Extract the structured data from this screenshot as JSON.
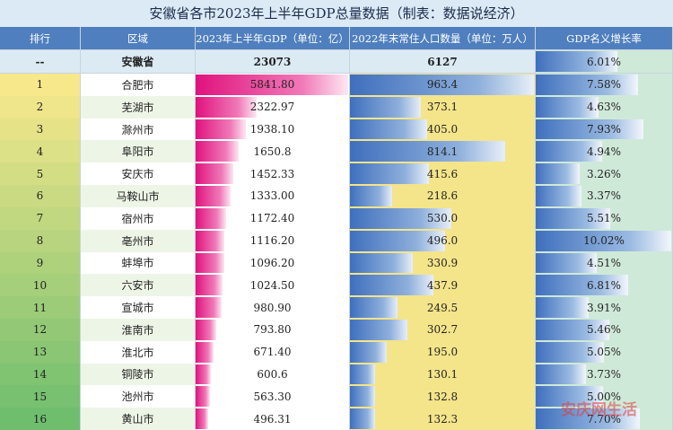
{
  "title": "安徽省各市2023年上半年GDP总量数据（制表：数据说经济）",
  "table": {
    "headers": [
      "排行",
      "区域",
      "2023年上半年GDP（单位：亿）",
      "2022年末常住人口数量（单位：万人）",
      "GDP名义增长率"
    ],
    "summary": [
      "--",
      "安徽省",
      "23073",
      "6127",
      "6.01%"
    ],
    "rows": [
      [
        "1",
        "合肥市",
        "5841.80",
        "963.4",
        "7.58%"
      ],
      [
        "2",
        "芜湖市",
        "2322.97",
        "373.1",
        "4.63%"
      ],
      [
        "3",
        "滁州市",
        "1938.10",
        "405.0",
        "7.93%"
      ],
      [
        "4",
        "阜阳市",
        "1650.8",
        "814.1",
        "4.94%"
      ],
      [
        "5",
        "安庆市",
        "1452.33",
        "415.6",
        "3.26%"
      ],
      [
        "6",
        "马鞍山市",
        "1333.00",
        "218.6",
        "3.37%"
      ],
      [
        "7",
        "宿州市",
        "1172.40",
        "530.0",
        "5.51%"
      ],
      [
        "8",
        "亳州市",
        "1116.20",
        "496.0",
        "10.02%"
      ],
      [
        "9",
        "蚌埠市",
        "1096.20",
        "330.9",
        "4.51%"
      ],
      [
        "10",
        "六安市",
        "1024.50",
        "437.9",
        "6.81%"
      ],
      [
        "11",
        "宣城市",
        "980.90",
        "249.5",
        "3.91%"
      ],
      [
        "12",
        "淮南市",
        "793.80",
        "302.7",
        "5.46%"
      ],
      [
        "13",
        "淮北市",
        "671.40",
        "195.0",
        "5.05%"
      ],
      [
        "14",
        "铜陵市",
        "600.6",
        "130.1",
        "3.73%"
      ],
      [
        "15",
        "池州市",
        "563.30",
        "132.8",
        "5.00%"
      ],
      [
        "16",
        "黄山市",
        "496.31",
        "132.3",
        "7.70%"
      ]
    ]
  },
  "watermark": "安庆网生活"
}
